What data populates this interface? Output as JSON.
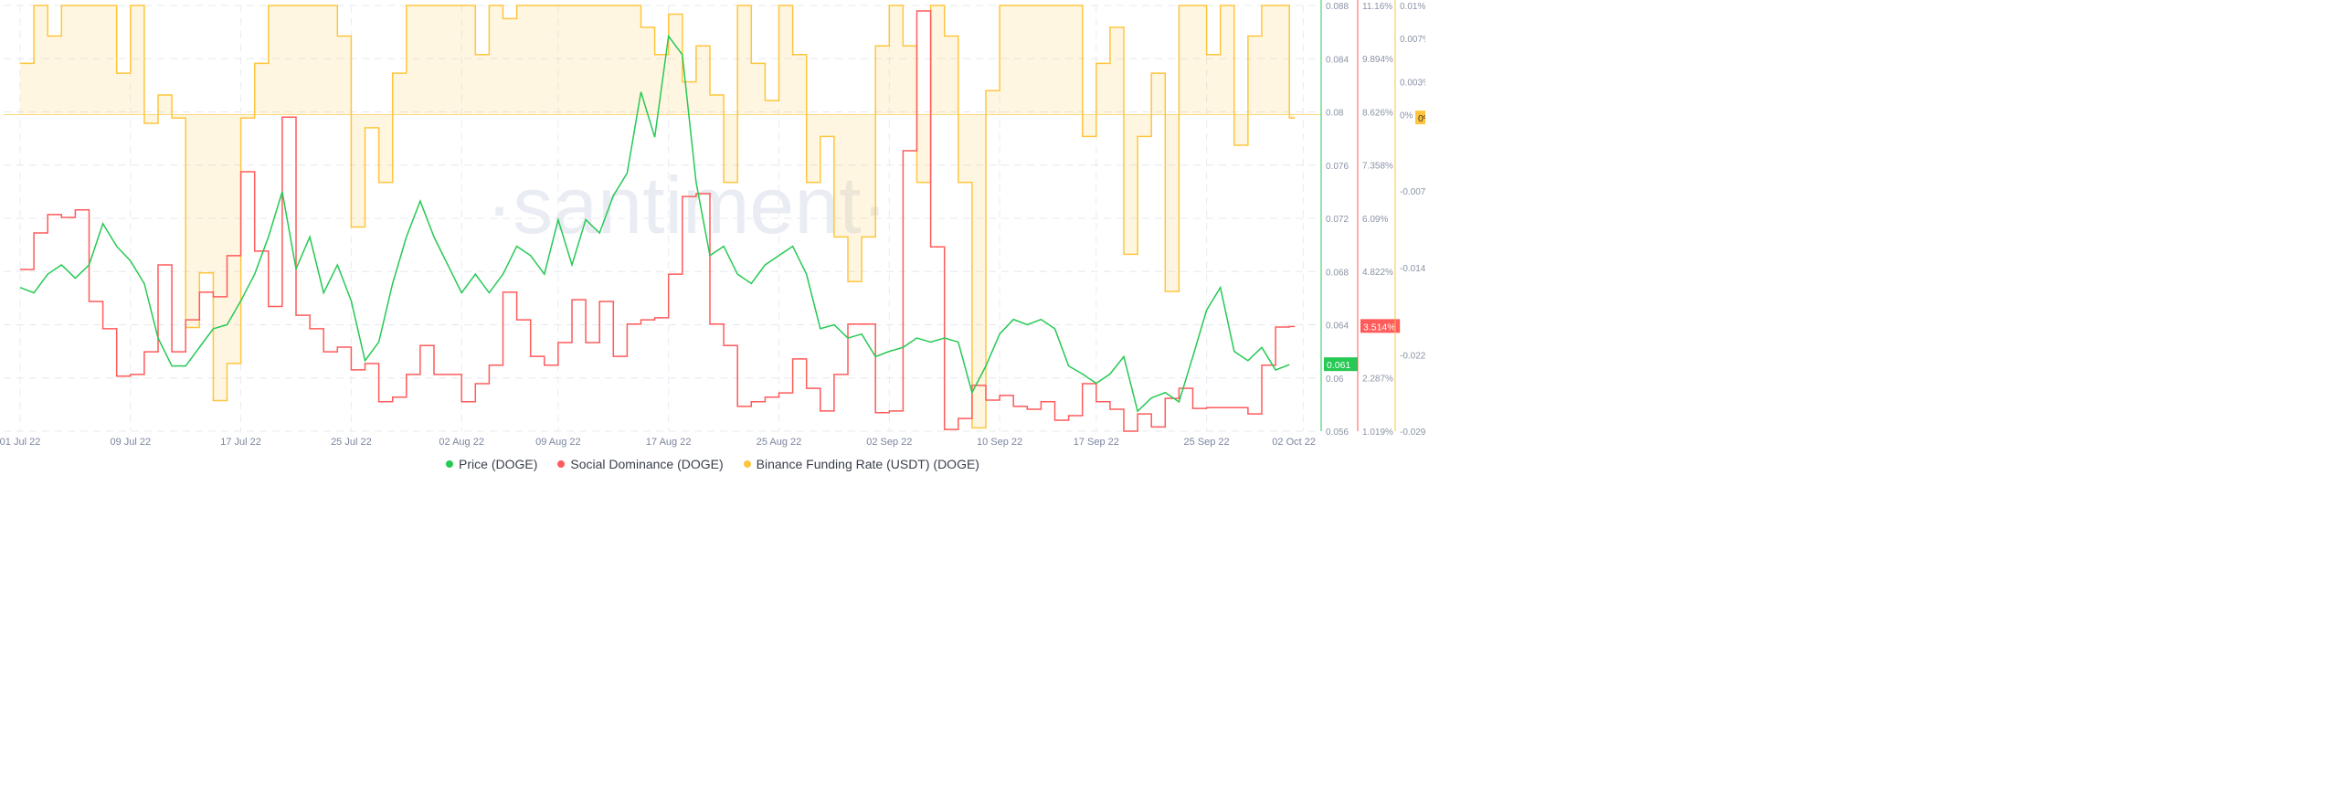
{
  "chart_data": {
    "type": "line",
    "watermark": "santiment",
    "x": [
      "2022-07-01",
      "2022-07-02",
      "2022-07-03",
      "2022-07-04",
      "2022-07-05",
      "2022-07-06",
      "2022-07-07",
      "2022-07-08",
      "2022-07-09",
      "2022-07-10",
      "2022-07-11",
      "2022-07-12",
      "2022-07-13",
      "2022-07-14",
      "2022-07-15",
      "2022-07-16",
      "2022-07-17",
      "2022-07-18",
      "2022-07-19",
      "2022-07-20",
      "2022-07-21",
      "2022-07-22",
      "2022-07-23",
      "2022-07-24",
      "2022-07-25",
      "2022-07-26",
      "2022-07-27",
      "2022-07-28",
      "2022-07-29",
      "2022-07-30",
      "2022-07-31",
      "2022-08-01",
      "2022-08-02",
      "2022-08-03",
      "2022-08-04",
      "2022-08-05",
      "2022-08-06",
      "2022-08-07",
      "2022-08-08",
      "2022-08-09",
      "2022-08-10",
      "2022-08-11",
      "2022-08-12",
      "2022-08-13",
      "2022-08-14",
      "2022-08-15",
      "2022-08-16",
      "2022-08-17",
      "2022-08-18",
      "2022-08-19",
      "2022-08-20",
      "2022-08-21",
      "2022-08-22",
      "2022-08-23",
      "2022-08-24",
      "2022-08-25",
      "2022-08-26",
      "2022-08-27",
      "2022-08-28",
      "2022-08-29",
      "2022-08-30",
      "2022-08-31",
      "2022-09-01",
      "2022-09-02",
      "2022-09-03",
      "2022-09-04",
      "2022-09-05",
      "2022-09-06",
      "2022-09-07",
      "2022-09-08",
      "2022-09-09",
      "2022-09-10",
      "2022-09-11",
      "2022-09-12",
      "2022-09-13",
      "2022-09-14",
      "2022-09-15",
      "2022-09-16",
      "2022-09-17",
      "2022-09-18",
      "2022-09-19",
      "2022-09-20",
      "2022-09-21",
      "2022-09-22",
      "2022-09-23",
      "2022-09-24",
      "2022-09-25",
      "2022-09-26",
      "2022-09-27",
      "2022-09-28",
      "2022-09-29",
      "2022-09-30",
      "2022-10-01"
    ],
    "x_ticks": [
      "01 Jul 22",
      "09 Jul 22",
      "17 Jul 22",
      "25 Jul 22",
      "02 Aug 22",
      "09 Aug 22",
      "17 Aug 22",
      "25 Aug 22",
      "02 Sep 22",
      "10 Sep 22",
      "17 Sep 22",
      "25 Sep 22",
      "02 Oct 22"
    ],
    "x_tick_dates": [
      "2022-07-01",
      "2022-07-09",
      "2022-07-17",
      "2022-07-25",
      "2022-08-02",
      "2022-08-09",
      "2022-08-17",
      "2022-08-25",
      "2022-09-02",
      "2022-09-10",
      "2022-09-17",
      "2022-09-25",
      "2022-10-02"
    ],
    "grid": true,
    "legend_position": "bottom",
    "series": [
      {
        "name": "Price (DOGE)",
        "color": "#26c953",
        "style": "line",
        "axis": {
          "range": [
            0.056,
            0.088
          ],
          "ticks": [
            "0.088",
            "0.084",
            "0.08",
            "0.076",
            "0.072",
            "0.068",
            "0.064",
            "0.06",
            "0.056"
          ],
          "tick_values": [
            0.088,
            0.084,
            0.08,
            0.076,
            0.072,
            0.068,
            0.064,
            0.06,
            0.056
          ]
        },
        "last_label": "0.061",
        "values": [
          0.0668,
          0.0664,
          0.0678,
          0.0685,
          0.0675,
          0.0685,
          0.0716,
          0.0699,
          0.0688,
          0.0671,
          0.063,
          0.0609,
          0.0609,
          0.0623,
          0.0637,
          0.064,
          0.0658,
          0.0678,
          0.0706,
          0.074,
          0.0682,
          0.0706,
          0.0664,
          0.0685,
          0.0658,
          0.0613,
          0.0627,
          0.0671,
          0.0706,
          0.0733,
          0.0706,
          0.0685,
          0.0664,
          0.0678,
          0.0664,
          0.0678,
          0.0699,
          0.0692,
          0.0678,
          0.0719,
          0.0685,
          0.0719,
          0.0709,
          0.0737,
          0.0754,
          0.0815,
          0.0781,
          0.0857,
          0.0843,
          0.0747,
          0.0692,
          0.0699,
          0.0678,
          0.0671,
          0.0685,
          0.0692,
          0.0699,
          0.0678,
          0.0637,
          0.064,
          0.063,
          0.0633,
          0.0616,
          0.062,
          0.0623,
          0.063,
          0.0627,
          0.063,
          0.0627,
          0.0589,
          0.0609,
          0.0633,
          0.0644,
          0.064,
          0.0644,
          0.0637,
          0.0609,
          0.0603,
          0.0596,
          0.0603,
          0.0616,
          0.0575,
          0.0585,
          0.0589,
          0.0582,
          0.0616,
          0.0651,
          0.0668,
          0.062,
          0.0613,
          0.0623,
          0.0606,
          0.061
        ]
      },
      {
        "name": "Social Dominance (DOGE)",
        "color": "#ff5b5b",
        "style": "step",
        "axis": {
          "range": [
            1.019,
            11.16
          ],
          "ticks": [
            "11.16%",
            "9.894%",
            "8.626%",
            "7.358%",
            "6.09%",
            "4.822%",
            "2.287%",
            "1.019%"
          ],
          "tick_values": [
            11.16,
            9.894,
            8.626,
            7.358,
            6.09,
            4.822,
            2.287,
            1.019
          ]
        },
        "last_label": "3.514%",
        "values": [
          4.87,
          5.74,
          6.18,
          6.11,
          6.29,
          4.11,
          3.46,
          2.33,
          2.37,
          2.91,
          4.98,
          2.91,
          3.67,
          4.33,
          4.22,
          5.2,
          7.2,
          5.31,
          3.99,
          8.5,
          3.78,
          3.46,
          2.91,
          3.02,
          2.48,
          2.63,
          1.72,
          1.83,
          2.37,
          3.06,
          2.37,
          2.37,
          1.72,
          2.15,
          2.59,
          4.33,
          3.67,
          2.8,
          2.59,
          3.13,
          4.15,
          3.13,
          4.11,
          2.8,
          3.57,
          3.67,
          3.72,
          4.76,
          6.61,
          6.68,
          3.57,
          3.06,
          1.61,
          1.72,
          1.83,
          1.93,
          2.74,
          2.04,
          1.5,
          2.37,
          3.57,
          3.57,
          1.46,
          1.5,
          7.7,
          11.03,
          5.41,
          1.06,
          1.32,
          2.11,
          1.76,
          1.87,
          1.61,
          1.54,
          1.72,
          1.28,
          1.39,
          2.15,
          1.72,
          1.54,
          1.02,
          1.43,
          1.12,
          1.8,
          2.04,
          1.56,
          1.58,
          1.58,
          1.58,
          1.43,
          2.59,
          3.5,
          3.514
        ]
      },
      {
        "name": "Binance Funding Rate (USDT) (DOGE)",
        "color": "#ffc53d",
        "style": "step-area",
        "axis": {
          "range": [
            -0.029,
            0.01
          ],
          "ticks": [
            "0.01%",
            "0.007%",
            "0.003%",
            "0%",
            "-0.007%",
            "-0.014%",
            "-0.022%",
            "-0.029%"
          ],
          "tick_values": [
            0.01,
            0.007,
            0.003,
            0,
            -0.007,
            -0.014,
            -0.022,
            -0.029
          ]
        },
        "last_label": "0%",
        "values": [
          0.0047,
          0.01,
          0.0072,
          0.01,
          0.01,
          0.01,
          0.01,
          0.0038,
          0.01,
          -0.0008,
          0.0018,
          -0.0003,
          -0.0195,
          -0.0145,
          -0.0262,
          -0.0228,
          -0.0003,
          0.0047,
          0.01,
          0.01,
          0.01,
          0.01,
          0.01,
          0.0072,
          -0.0103,
          -0.0012,
          -0.0062,
          0.0038,
          0.01,
          0.01,
          0.01,
          0.01,
          0.01,
          0.0055,
          0.01,
          0.0088,
          0.01,
          0.01,
          0.01,
          0.01,
          0.01,
          0.01,
          0.01,
          0.01,
          0.01,
          0.008,
          0.0055,
          0.0092,
          0.003,
          0.0063,
          0.0018,
          -0.0062,
          0.01,
          0.0047,
          0.0013,
          0.01,
          0.0055,
          -0.0062,
          -0.002,
          -0.0112,
          -0.0153,
          -0.0112,
          0.0063,
          0.01,
          0.0063,
          -0.0062,
          0.01,
          0.0072,
          -0.0062,
          -0.0287,
          0.0022,
          0.01,
          0.01,
          0.01,
          0.01,
          0.01,
          0.01,
          -0.002,
          0.0047,
          0.008,
          -0.0128,
          -0.002,
          0.0038,
          -0.0162,
          0.01,
          0.01,
          0.0055,
          0.01,
          -0.0028,
          0.0072,
          0.01,
          0.01,
          -0.0003
        ]
      }
    ]
  },
  "legend": [
    {
      "label": "Price (DOGE)",
      "color": "#26c953"
    },
    {
      "label": "Social Dominance (DOGE)",
      "color": "#ff5b5b"
    },
    {
      "label": "Binance Funding Rate (USDT) (DOGE)",
      "color": "#ffc53d"
    }
  ]
}
